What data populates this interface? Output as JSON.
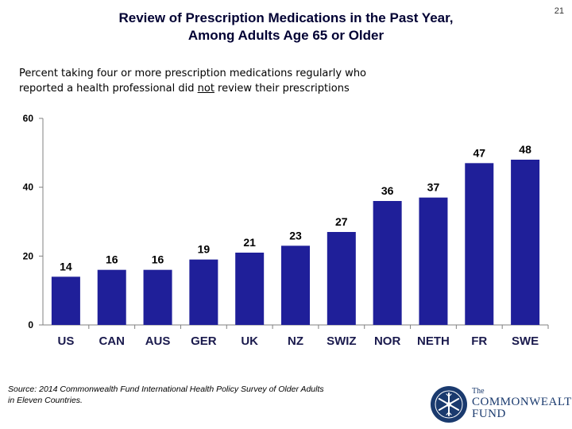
{
  "page_number": "21",
  "title_lines": [
    "Review of Prescription Medications in the Past Year,",
    "Among Adults Age 65 or Older"
  ],
  "subtitle": {
    "line1": "Percent taking four or more prescription medications regularly who",
    "line2_before": "reported a health professional did ",
    "line2_underlined": "not",
    "line2_after": " review their prescriptions"
  },
  "source_lines": [
    "Source: 2014 Commonwealth Fund International Health Policy Survey of Older Adults",
    "in Eleven Countries."
  ],
  "logo": {
    "the": "The",
    "org": "COMMONWEALTH",
    "fund": "FUND"
  },
  "colors": {
    "bar": "#1f1f99",
    "axis": "#808080",
    "title": "#000033"
  },
  "chart_data": {
    "type": "bar",
    "categories": [
      "US",
      "CAN",
      "AUS",
      "GER",
      "UK",
      "NZ",
      "SWIZ",
      "NOR",
      "NETH",
      "FR",
      "SWE"
    ],
    "values": [
      14,
      16,
      16,
      19,
      21,
      23,
      27,
      36,
      37,
      47,
      48
    ],
    "ylim": [
      0,
      60
    ],
    "yticks": [
      0,
      20,
      40,
      60
    ],
    "grid": false,
    "legend": "none"
  }
}
